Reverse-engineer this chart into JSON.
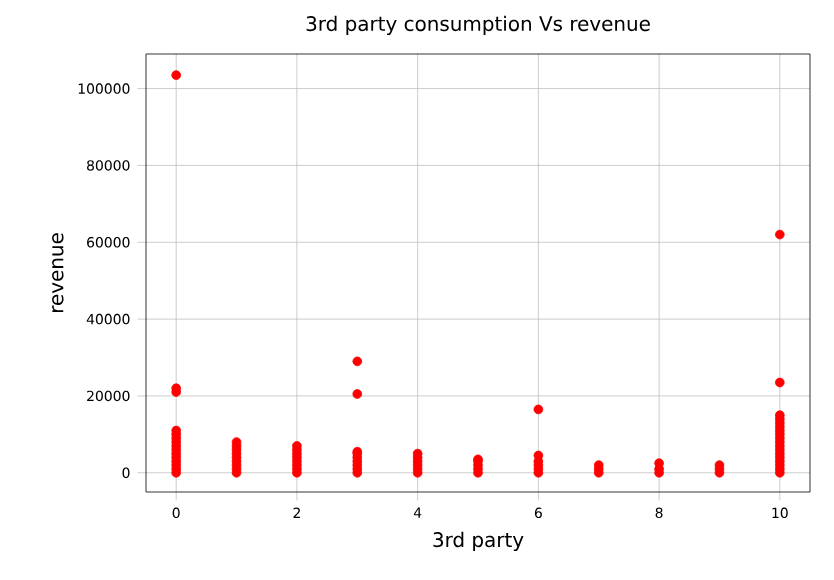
{
  "chart_data": {
    "type": "scatter",
    "title": "3rd party consumption Vs revenue",
    "xlabel": "3rd party",
    "ylabel": "revenue",
    "x": [
      0,
      0,
      0,
      0,
      0,
      0,
      0,
      0,
      0,
      0,
      0,
      0,
      0,
      0,
      0,
      1,
      1,
      1,
      1,
      1,
      1,
      1,
      1,
      1,
      2,
      2,
      2,
      2,
      2,
      2,
      2,
      2,
      3,
      3,
      3,
      3,
      3,
      3,
      3,
      3,
      3,
      4,
      4,
      4,
      4,
      4,
      4,
      5,
      5,
      5,
      5,
      5,
      6,
      6,
      6,
      6,
      6,
      6,
      7,
      7,
      7,
      8,
      8,
      8,
      9,
      9,
      9,
      10,
      10,
      10,
      10,
      10,
      10,
      10,
      10,
      10,
      10,
      10,
      10,
      10,
      10,
      10,
      10,
      10,
      10
    ],
    "values": [
      0,
      1000,
      2000,
      3000,
      4000,
      5000,
      6000,
      7000,
      8000,
      9000,
      10000,
      11000,
      21000,
      22000,
      103500,
      0,
      1000,
      2000,
      3000,
      4000,
      5000,
      6000,
      7000,
      8000,
      0,
      1000,
      2000,
      3000,
      4000,
      5000,
      6000,
      7000,
      0,
      1000,
      2000,
      3000,
      4000,
      5000,
      5500,
      20500,
      29000,
      0,
      1000,
      2000,
      3000,
      4000,
      5000,
      0,
      1000,
      2000,
      3000,
      3500,
      0,
      1000,
      2000,
      3000,
      4500,
      16500,
      0,
      1000,
      2000,
      0,
      1000,
      2500,
      0,
      1000,
      2000,
      0,
      1000,
      2000,
      3000,
      4000,
      5000,
      6000,
      7000,
      8000,
      9000,
      10000,
      11000,
      12000,
      13000,
      14000,
      15000,
      23500,
      62000
    ],
    "color": "#ff0000",
    "marker": "circle",
    "grid": true,
    "xlim": [
      -0.5,
      10.5
    ],
    "ylim": [
      -5000,
      109000
    ],
    "xticks": [
      0,
      2,
      4,
      6,
      8,
      10
    ],
    "yticks": [
      0,
      20000,
      40000,
      60000,
      80000,
      100000
    ]
  }
}
